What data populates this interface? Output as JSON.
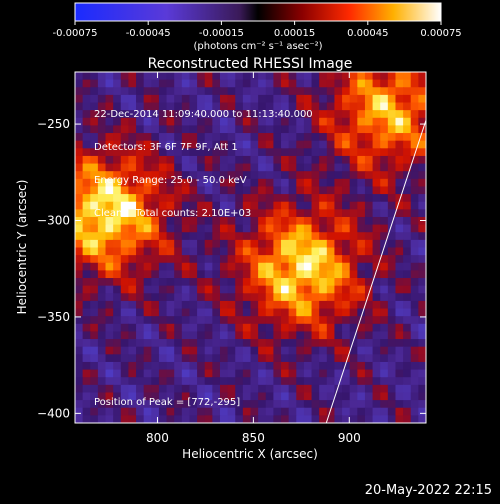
{
  "colorbar": {
    "ticks": [
      "-0.00075",
      "-0.00045",
      "-0.00015",
      "0.00015",
      "0.00045",
      "0.00075"
    ],
    "unit_label": "(photons cm⁻² s⁻¹ asec⁻²)"
  },
  "chart_data": {
    "type": "heatmap",
    "title": "Reconstructed RHESSI Image",
    "xlabel": "Heliocentric X (arcsec)",
    "ylabel": "Heliocentric Y (arcsec)",
    "xlim": [
      757,
      940
    ],
    "ylim": [
      -405,
      -223
    ],
    "xticks": [
      800,
      850,
      900
    ],
    "yticks": [
      -250,
      -300,
      -350,
      -400
    ],
    "value_range": [
      -0.00075,
      0.00075
    ],
    "colormap": "heat-blue-diverging",
    "annotations": [
      "22-Dec-2014 11:09:40.000 to 11:13:40.000",
      "Detectors: 3F 6F 7F 9F, Att 1",
      "Energy Range: 25.0 - 50.0 keV",
      "Clean    Total counts: 2.10E+03"
    ],
    "peak_label": "Position of Peak = [772,-295]",
    "peak_position": [
      772,
      -295
    ],
    "limb_line": [
      [
        888,
        -405
      ],
      [
        940,
        -248
      ]
    ],
    "sources": [
      {
        "x": 875,
        "y": -325,
        "peak": 0.00072
      },
      {
        "x": 773,
        "y": -296,
        "peak": 0.00075
      },
      {
        "x": 920,
        "y": -243,
        "peak": 0.0006
      }
    ]
  },
  "footer": {
    "timestamp": "20-May-2022 22:15"
  }
}
